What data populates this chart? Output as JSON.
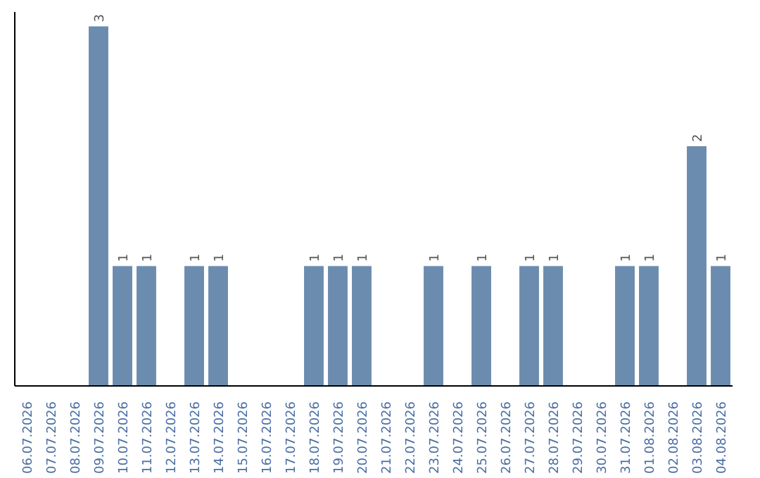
{
  "chart_data": {
    "type": "bar",
    "categories": [
      "06.07.2026",
      "07.07.2026",
      "08.07.2026",
      "09.07.2026",
      "10.07.2026",
      "11.07.2026",
      "12.07.2026",
      "13.07.2026",
      "14.07.2026",
      "15.07.2026",
      "16.07.2026",
      "17.07.2026",
      "18.07.2026",
      "19.07.2026",
      "20.07.2026",
      "21.07.2026",
      "22.07.2026",
      "23.07.2026",
      "24.07.2026",
      "25.07.2026",
      "26.07.2026",
      "27.07.2026",
      "28.07.2026",
      "29.07.2026",
      "30.07.2026",
      "31.07.2026",
      "01.08.2026",
      "02.08.2026",
      "03.08.2026",
      "04.08.2026"
    ],
    "values": [
      0,
      0,
      0,
      3,
      1,
      1,
      0,
      1,
      1,
      0,
      0,
      0,
      1,
      1,
      1,
      0,
      0,
      1,
      0,
      1,
      0,
      1,
      1,
      0,
      0,
      1,
      1,
      0,
      2,
      1
    ],
    "value_labels": [
      null,
      null,
      null,
      "3",
      "1",
      "1",
      null,
      "1",
      "1",
      null,
      null,
      null,
      "1",
      "1",
      "1",
      null,
      null,
      "1",
      null,
      "1",
      null,
      "1",
      "1",
      null,
      null,
      "1",
      "1",
      null,
      "2",
      "1"
    ],
    "color": "#6b8cae",
    "grid": false,
    "tick_labels": "x"
  }
}
